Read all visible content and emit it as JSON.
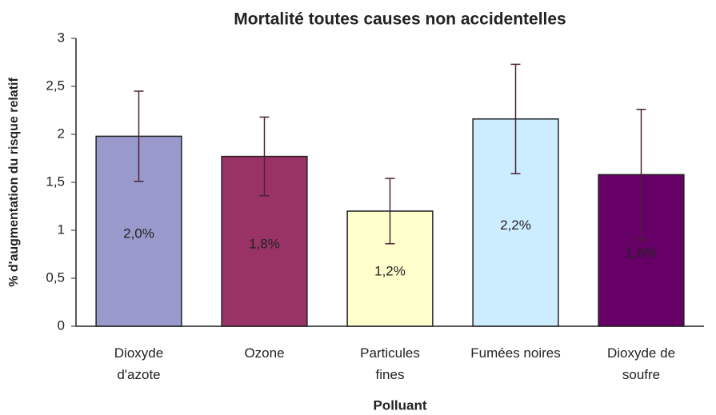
{
  "chart_data": {
    "type": "bar",
    "title": "Mortalité toutes causes non accidentelles",
    "x_label": "Polluant",
    "y_label": "% d'augmentation du risque relatif",
    "categories": [
      "Dioxyde\nd'azote",
      "Ozone",
      "Particules\nfines",
      "Fumées noires",
      "Dioxyde de\nsoufre"
    ],
    "values": [
      1.98,
      1.77,
      1.2,
      2.16,
      1.58
    ],
    "value_labels": [
      "2,0%",
      "1,8%",
      "1,2%",
      "2,2%",
      "1,6%"
    ],
    "errors": [
      0.47,
      0.41,
      0.34,
      0.57,
      0.68
    ],
    "colors": [
      "#9999cc",
      "#993366",
      "#ffffcc",
      "#ccecff",
      "#660066"
    ],
    "error_color": "#4a2238",
    "ylim": [
      0,
      3
    ],
    "yticks": [
      0,
      {
        "value": 0.5,
        "label": "0,5"
      },
      1,
      {
        "value": 1.5,
        "label": "1,5"
      },
      2,
      {
        "value": 2.5,
        "label": "2,5"
      },
      3
    ],
    "grid": false
  }
}
